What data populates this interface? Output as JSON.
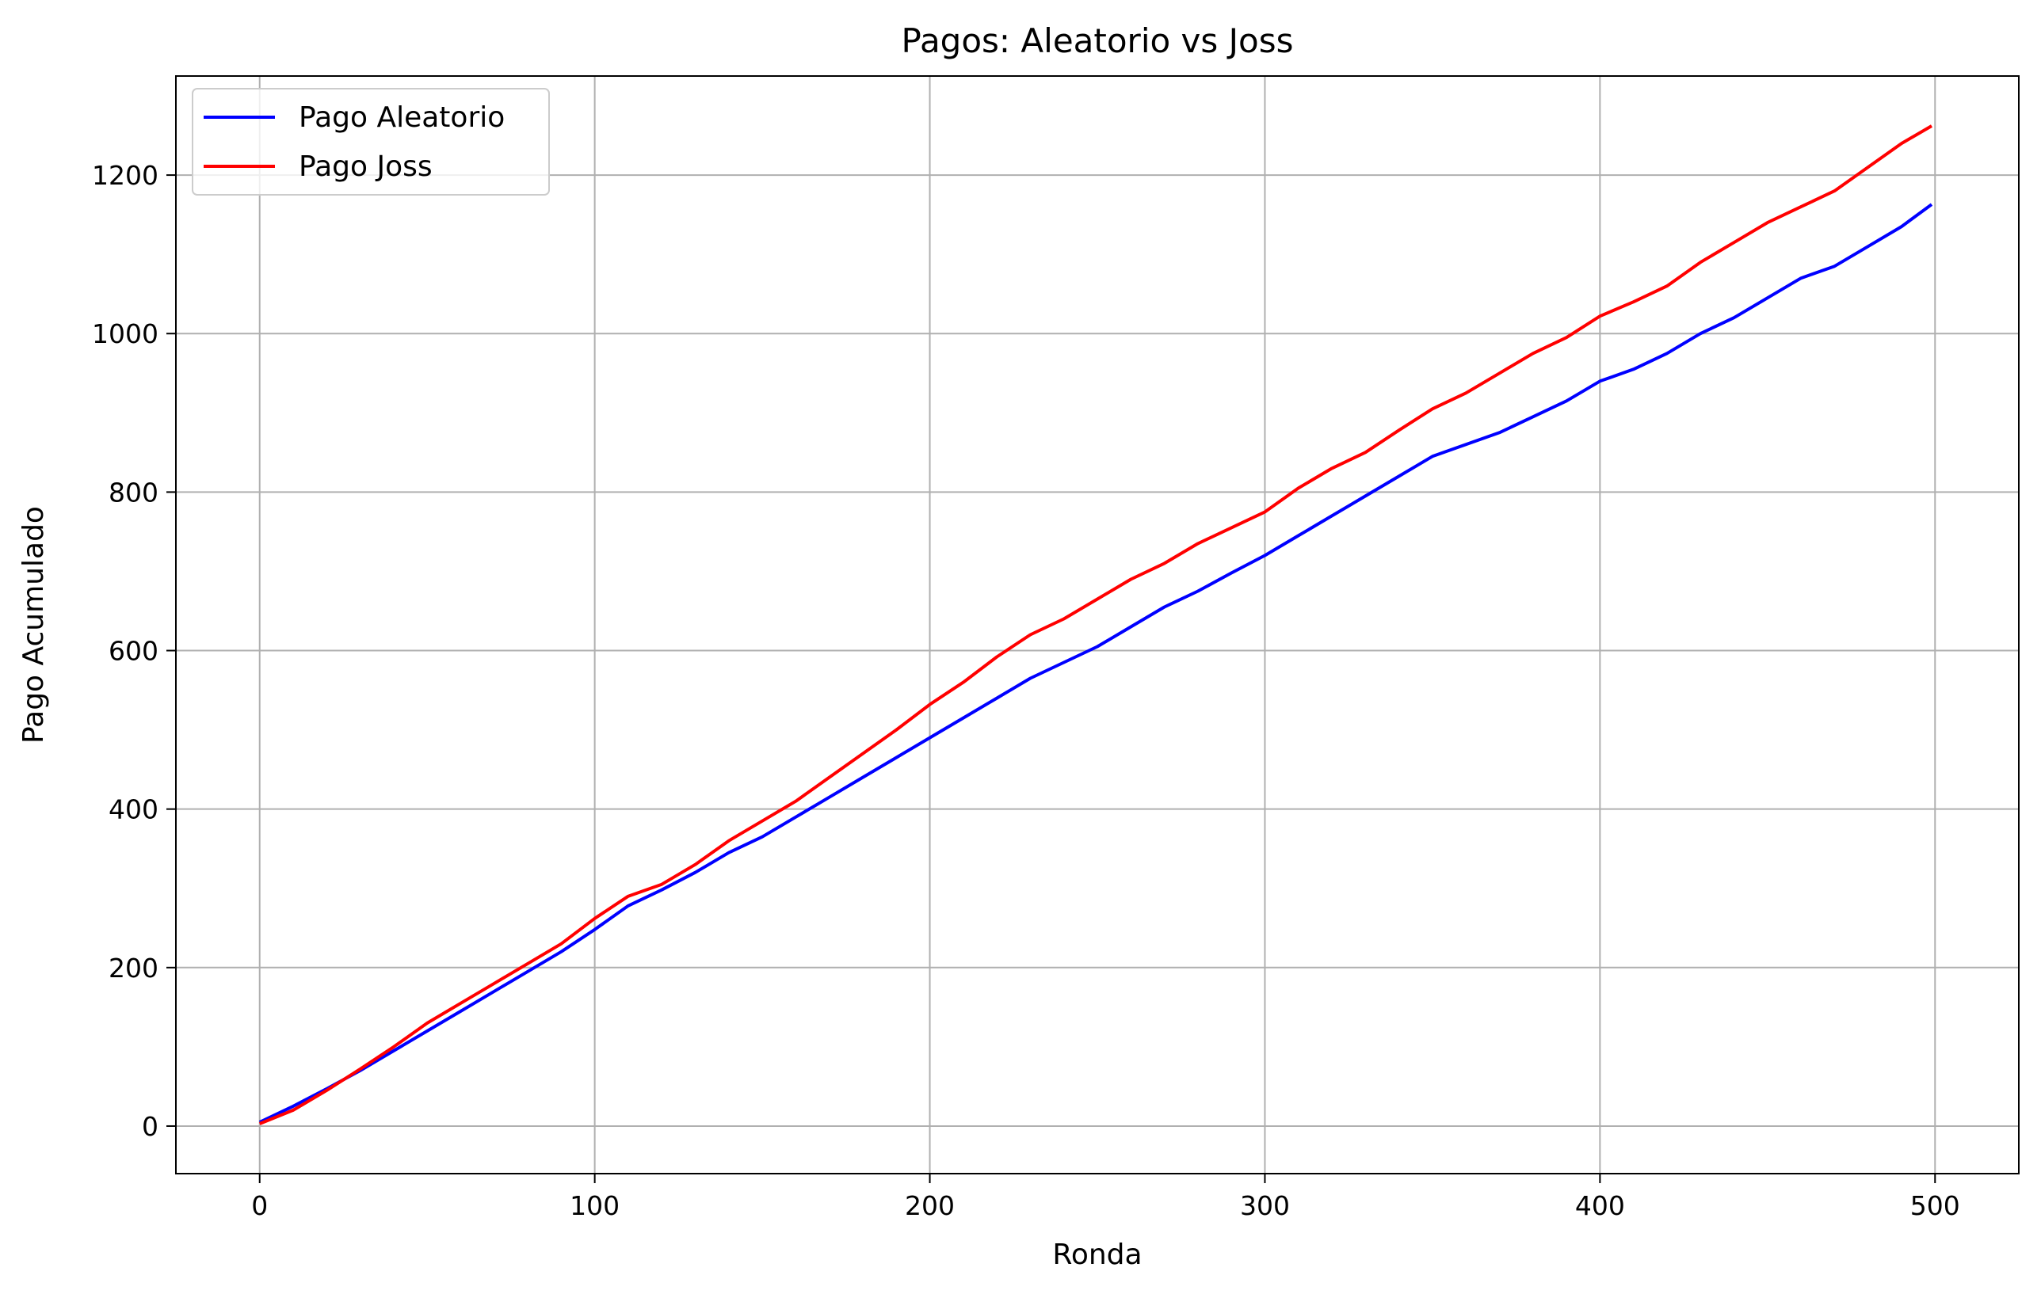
{
  "chart_data": {
    "type": "line",
    "title": "Pagos: Aleatorio vs Joss",
    "xlabel": "Ronda",
    "ylabel": "Pago Acumulado",
    "xlim": [
      -25,
      525
    ],
    "ylim": [
      -60,
      1325
    ],
    "xticks": [
      0,
      100,
      200,
      300,
      400,
      500
    ],
    "yticks": [
      0,
      200,
      400,
      600,
      800,
      1000,
      1200
    ],
    "grid": true,
    "legend_position": "upper-left",
    "x": [
      0,
      10,
      20,
      30,
      40,
      50,
      60,
      70,
      80,
      90,
      100,
      110,
      120,
      130,
      140,
      150,
      160,
      170,
      180,
      190,
      200,
      210,
      220,
      230,
      240,
      250,
      260,
      270,
      280,
      290,
      300,
      310,
      320,
      330,
      340,
      350,
      360,
      370,
      380,
      390,
      400,
      410,
      420,
      430,
      440,
      450,
      460,
      470,
      480,
      490,
      499
    ],
    "series": [
      {
        "name": "Pago Aleatorio",
        "color": "#0000ff",
        "values": [
          5,
          25,
          47,
          70,
          95,
          120,
          145,
          170,
          195,
          220,
          248,
          278,
          298,
          320,
          345,
          365,
          390,
          415,
          440,
          465,
          490,
          515,
          540,
          565,
          585,
          605,
          630,
          655,
          675,
          698,
          720,
          745,
          770,
          795,
          820,
          845,
          860,
          875,
          895,
          915,
          940,
          955,
          975,
          1000,
          1020,
          1045,
          1070,
          1085,
          1110,
          1135,
          1163
        ]
      },
      {
        "name": "Pago Joss",
        "color": "#ff0000",
        "values": [
          3,
          20,
          45,
          72,
          100,
          130,
          155,
          180,
          205,
          230,
          262,
          290,
          305,
          330,
          360,
          385,
          410,
          440,
          470,
          500,
          532,
          560,
          592,
          620,
          640,
          665,
          690,
          710,
          735,
          755,
          775,
          805,
          830,
          850,
          878,
          905,
          925,
          950,
          975,
          995,
          1022,
          1040,
          1060,
          1090,
          1115,
          1140,
          1160,
          1180,
          1210,
          1240,
          1262
        ]
      }
    ]
  }
}
